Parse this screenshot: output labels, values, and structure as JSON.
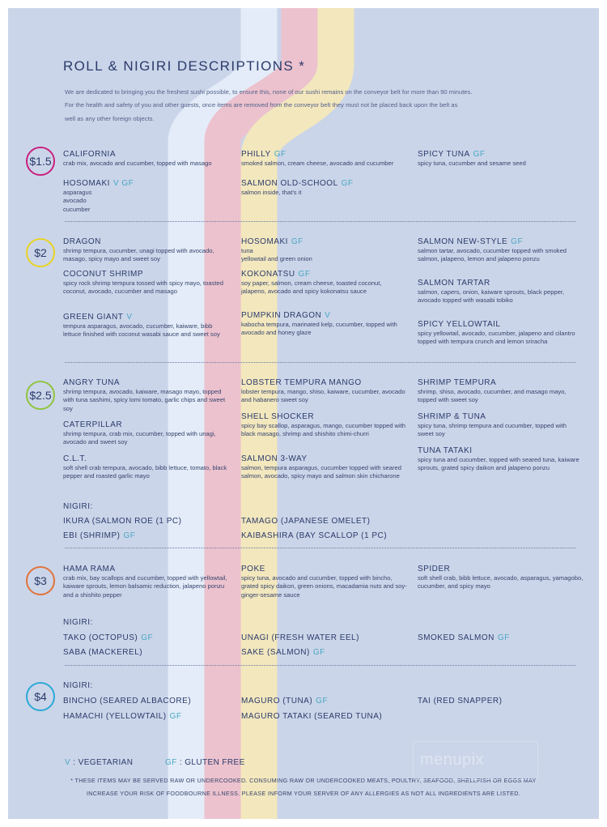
{
  "title": "ROLL & NIGIRI DESCRIPTIONS *",
  "intro": [
    "We are dedicated to bringing you the freshest sushi possible, to ensure this, none of our sushi remains on the conveyor belt for more than 90 minutes.",
    "For the health and safety of you and other guests, once items are removed from the conveyor belt they must not be placed back upon the belt as",
    "well as any other foreign objects."
  ],
  "colors": {
    "stripe_blue": "#e3ecf8",
    "stripe_pink": "#ecc2ce",
    "stripe_yellow": "#f2e7bd",
    "background": "#cbd5e9",
    "gf_tag": "#4aa7c4"
  },
  "sections": [
    {
      "price": "$1.5",
      "color": "#c8217f",
      "items": [
        {
          "name": "CALIFORNIA",
          "tag": "",
          "desc": "crab mix, avocado and cucumber, topped with masago"
        },
        {
          "name": "PHILLY",
          "tag": "GF",
          "desc": "smoked salmon, cream cheese, avocado and cucumber"
        },
        {
          "name": "SPICY TUNA",
          "tag": "GF",
          "desc": "spicy tuna, cucumber and sesame seed"
        },
        {
          "name": "HOSOMAKI",
          "tag": "V  GF",
          "desc": "asparagus\navocado\ncucumber"
        },
        {
          "name": "SALMON OLD-SCHOOL",
          "tag": "GF",
          "desc": "salmon inside, that's it"
        }
      ]
    },
    {
      "price": "$2",
      "color": "#e8d324",
      "items": [
        {
          "name": "DRAGON",
          "tag": "",
          "desc": "shrimp tempura, cucumber, unagi topped with avocado, masago, spicy mayo and sweet soy"
        },
        {
          "name": "HOSOMAKI",
          "tag": "GF",
          "desc": "tuna\nyellowtail and green onion"
        },
        {
          "name": "SALMON NEW-STYLE",
          "tag": "GF",
          "desc": "salmon tartar, avocado, cucumber topped with smoked salmon, jalapeno, lemon and jalapeno ponzu"
        },
        {
          "name": "COCONUT SHRIMP",
          "tag": "",
          "desc": "spicy rock shrimp tempura tossed with spicy mayo, toasted coconut, avocado, cucumber and masago"
        },
        {
          "name": "KOKONATSU",
          "tag": "GF",
          "desc": "soy paper, salmon, cream cheese, toasted coconut, jalapeno, avocado and spicy kokonatsu sauce"
        },
        {
          "name": "SALMON TARTAR",
          "tag": "",
          "desc": "salmon, capers, onion, kaiware sprouts, black pepper, avocado topped with wasabi tobiko"
        },
        {
          "name": "GREEN GIANT",
          "tag": "V",
          "desc": "tempura asparagus, avocado, cucumber, kaiware, bibb lettuce finished with coconut wasabi sauce and sweet soy"
        },
        {
          "name": "PUMPKIN DRAGON",
          "tag": "V",
          "desc": "kabocha tempura, marinated kelp, cucumber, topped with avocado and honey glaze"
        },
        {
          "name": "SPICY YELLOWTAIL",
          "tag": "",
          "desc": "spicy yellowtail, avocado, cucumber, jalapeno and cilantro topped with tempura crunch and lemon sriracha"
        }
      ]
    },
    {
      "price": "$2.5",
      "color": "#8fc43e",
      "items": [
        {
          "name": "ANGRY TUNA",
          "tag": "",
          "desc": "shrimp tempura, avocado, kaiware, masago mayo, topped with tuna sashimi, spicy lomi tomato, garlic chips and sweet soy"
        },
        {
          "name": "LOBSTER TEMPURA MANGO",
          "tag": "",
          "desc": "lobster tempura, mango, shiso, kaiware, cucumber, avocado and habanero sweet soy"
        },
        {
          "name": "SHRIMP TEMPURA",
          "tag": "",
          "desc": "shrimp, shiso, avocado, cucumber, and masago mayo, topped with sweet soy"
        },
        {
          "name": "CATERPILLAR",
          "tag": "",
          "desc": "shrimp tempura, crab mix, cucumber, topped with unagi, avocado and sweet soy"
        },
        {
          "name": "SHELL SHOCKER",
          "tag": "",
          "desc": "spicy bay scallop, asparagus, mango, cucumber topped with black masago, shrimp and shishito chimi-churri"
        },
        {
          "name": "SHRIMP & TUNA",
          "tag": "",
          "desc": "spicy tuna, shrimp tempura and cucumber, topped with sweet soy"
        },
        {
          "name": "C.L.T.",
          "tag": "",
          "desc": "soft shell crab tempura, avocado, bibb lettuce, tomato, black pepper and roasted garlic mayo"
        },
        {
          "name": "SALMON 3-WAY",
          "tag": "",
          "desc": "salmon, tempura asparagus, cucumber topped with seared salmon, avocado, spicy mayo and salmon skin chicharone"
        },
        {
          "name": "TUNA TATAKI",
          "tag": "",
          "desc": "spicy tuna and cucumber, topped with seared tuna, kaiware sprouts, grated spicy daikon and jalapeno ponzu"
        }
      ],
      "nigiri_label": "NIGIRI:",
      "nigiri": [
        {
          "name": "IKURA (SALMON ROE (1 PC)",
          "tag": ""
        },
        {
          "name": "TAMAGO (JAPANESE OMELET)",
          "tag": ""
        },
        {
          "name": "EBI (SHRIMP)",
          "tag": "GF"
        },
        {
          "name": "KAIBASHIRA (BAY SCALLOP (1 PC)",
          "tag": ""
        }
      ]
    },
    {
      "price": "$3",
      "color": "#e0733a",
      "items": [
        {
          "name": "HAMA RAMA",
          "tag": "",
          "desc": "crab mix, bay scallops and cucumber, topped with yellowtail, kaiware sprouts, lemon balsamic reduction, jalapeno ponzu and a shishito pepper"
        },
        {
          "name": "POKE",
          "tag": "",
          "desc": "spicy tuna, avocado and cucumber, topped with bincho, grated spicy daikon, green onions, macadamia nuts and soy-ginger-sesame sauce"
        },
        {
          "name": "SPIDER",
          "tag": "",
          "desc": "soft shell crab, bibb lettuce, avocado, asparagus, yamagobo, cucumber, and spicy mayo"
        }
      ],
      "nigiri_label": "NIGIRI:",
      "nigiri": [
        {
          "name": "TAKO (OCTOPUS)",
          "tag": "GF"
        },
        {
          "name": "UNAGI (FRESH WATER EEL)",
          "tag": ""
        },
        {
          "name": "SMOKED SALMON",
          "tag": "GF"
        },
        {
          "name": "SABA (MACKEREL)",
          "tag": ""
        },
        {
          "name": "SAKE (SALMON)",
          "tag": "GF"
        }
      ]
    },
    {
      "price": "$4",
      "color": "#2ba9d6",
      "nigiri_label": "NIGIRI:",
      "nigiri": [
        {
          "name": "BINCHO (SEARED ALBACORE)",
          "tag": ""
        },
        {
          "name": "MAGURO (TUNA)",
          "tag": "GF"
        },
        {
          "name": "TAI (RED SNAPPER)",
          "tag": ""
        },
        {
          "name": "HAMACHI (YELLOWTAIL)",
          "tag": "GF"
        },
        {
          "name": "MAGURO TATAKI (SEARED TUNA)",
          "tag": ""
        }
      ]
    }
  ],
  "legend": {
    "v_key": "V",
    "v_text": ": VEGETARIAN",
    "gf_key": "GF",
    "gf_text": ": GLUTEN FREE"
  },
  "footer": [
    "* THESE ITEMS MAY BE SERVED RAW OR UNDERCOOKED. CONSUMING RAW OR UNDERCOOKED MEATS, POULTRY, SEAFOOD, SHELLFISH OR EGGS MAY",
    "INCREASE YOUR RISK OF FOODBOURNE ILLNESS. PLEASE INFORM YOUR SERVER OF ANY ALLERGIES AS NOT ALL INGREDIENTS ARE LISTED."
  ],
  "watermark": "menupix"
}
